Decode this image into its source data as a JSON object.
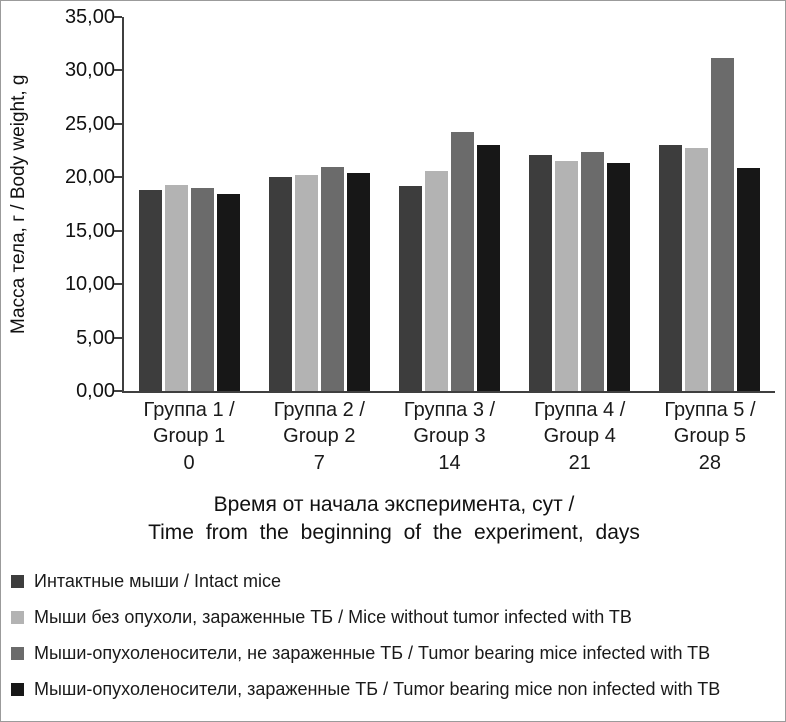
{
  "figure": {
    "x_axis_title_line1": "Время от начала эксперимента, сут /",
    "x_axis_title_line2": "Time from the beginning of the experiment, days"
  },
  "chart_data": {
    "type": "bar",
    "title": "",
    "ylabel": "Масса тела, г / Body weight, g",
    "xlabel": "Время от начала эксперимента, сут / Time from the beginning of the experiment, days",
    "ylim": [
      0,
      35
    ],
    "grid": false,
    "legend_position": "bottom-left",
    "yticks": [
      {
        "value": 0,
        "label": "0,00"
      },
      {
        "value": 5,
        "label": "5,00"
      },
      {
        "value": 10,
        "label": "10,00"
      },
      {
        "value": 15,
        "label": "15,00"
      },
      {
        "value": 20,
        "label": "20,00"
      },
      {
        "value": 25,
        "label": "25,00"
      },
      {
        "value": 30,
        "label": "30,00"
      },
      {
        "value": 35,
        "label": "35,00"
      }
    ],
    "categories": [
      {
        "label_line1": "Группа 1 /",
        "label_line2": "Group 1",
        "day": "0"
      },
      {
        "label_line1": "Группа 2 /",
        "label_line2": "Group 2",
        "day": "7"
      },
      {
        "label_line1": "Группа 3 /",
        "label_line2": "Group 3",
        "day": "14"
      },
      {
        "label_line1": "Группа 4 /",
        "label_line2": "Group 4",
        "day": "21"
      },
      {
        "label_line1": "Группа 5 /",
        "label_line2": "Group 5",
        "day": "28"
      }
    ],
    "series": [
      {
        "name": "Интактные мыши / Intact mice",
        "color": "#3d3d3d",
        "values": [
          18.8,
          20.0,
          19.2,
          22.1,
          23.0
        ]
      },
      {
        "name": "Мыши без опухоли, зараженные ТБ / Mice without tumor infected with TB",
        "color": "#b3b3b3",
        "values": [
          19.3,
          20.2,
          20.6,
          21.5,
          22.7
        ]
      },
      {
        "name": "Мыши-опухоленосители, не зараженные ТБ / Tumor bearing mice infected with TB",
        "color": "#6b6b6b",
        "values": [
          19.0,
          21.0,
          24.2,
          22.4,
          31.2
        ]
      },
      {
        "name": "Мыши-опухоленосители, зараженные ТБ / Tumor bearing mice non infected with TB",
        "color": "#171717",
        "values": [
          18.4,
          20.4,
          23.0,
          21.3,
          20.9
        ]
      }
    ]
  }
}
